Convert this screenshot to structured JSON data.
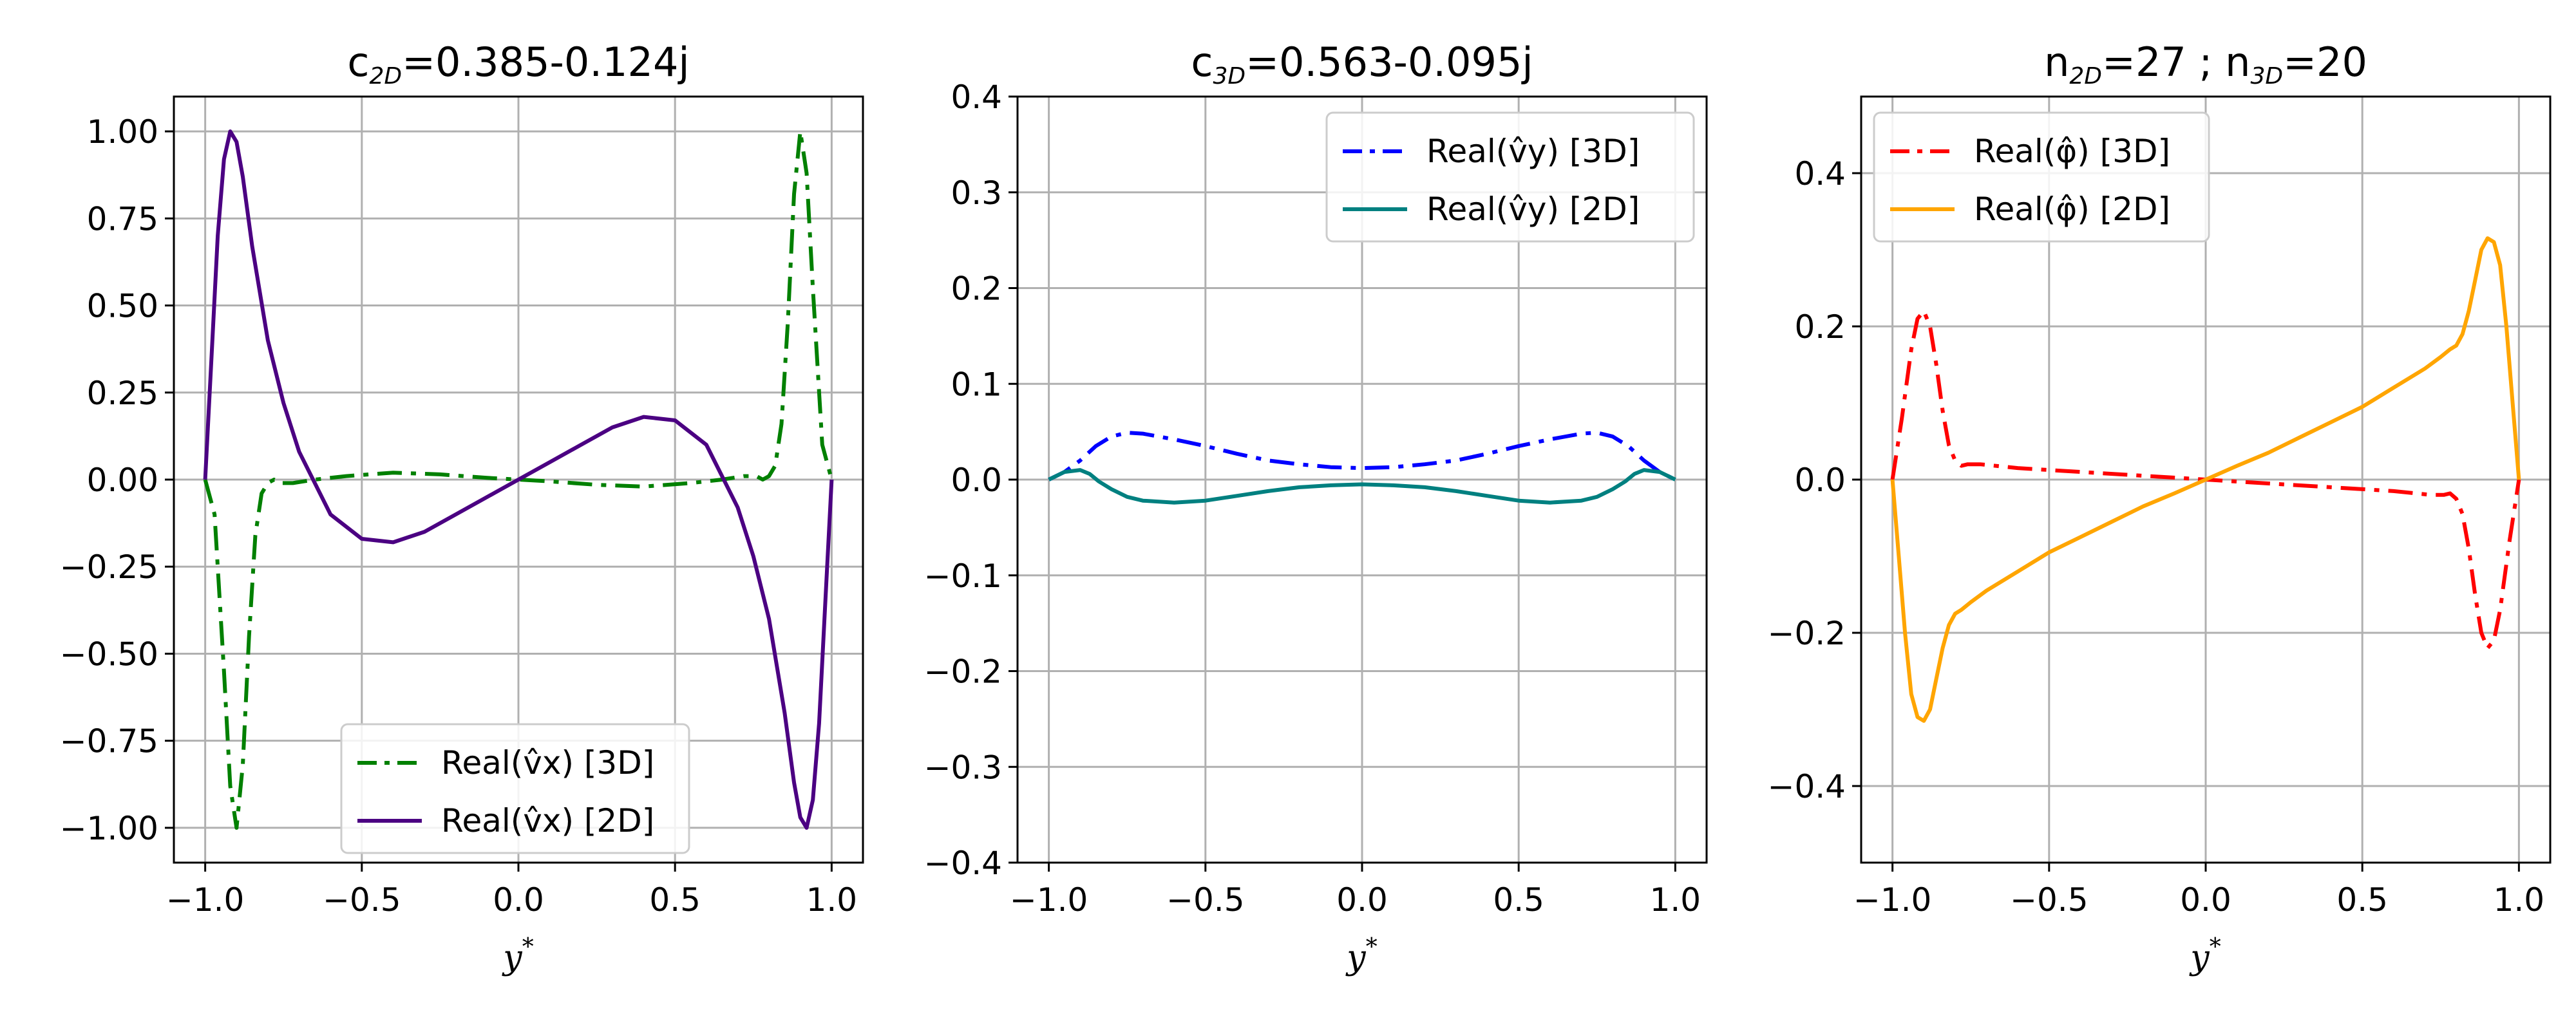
{
  "chart_data": [
    {
      "type": "line",
      "title": "c2D=0.385-0.124j",
      "title_parts": [
        "c",
        "2D",
        "=0.385-0.124j"
      ],
      "xlabel": "y*",
      "ylabel": "",
      "xlim": [
        -1.1,
        1.1
      ],
      "ylim": [
        -1.1,
        1.1
      ],
      "xticks": [
        -1.0,
        -0.5,
        0.0,
        0.5,
        1.0
      ],
      "xtick_labels": [
        "−1.0",
        "−0.5",
        "0.0",
        "0.5",
        "1.0"
      ],
      "yticks": [
        1.0,
        0.75,
        0.5,
        0.25,
        0.0,
        -0.25,
        -0.5,
        -0.75,
        -1.0
      ],
      "ytick_labels": [
        "1.00",
        "0.75",
        "0.50",
        "0.25",
        "0.00",
        "−0.25",
        "−0.50",
        "−0.75",
        "−1.00"
      ],
      "grid": true,
      "legend_position": "lower-center",
      "series": [
        {
          "name": "Real(v̂x) [3D]",
          "color": "#008000",
          "dash": "dashdot",
          "x": [
            -1.0,
            -0.97,
            -0.94,
            -0.92,
            -0.9,
            -0.88,
            -0.86,
            -0.84,
            -0.82,
            -0.8,
            -0.78,
            -0.76,
            -0.72,
            -0.65,
            -0.55,
            -0.4,
            -0.25,
            -0.1,
            0.0,
            0.1,
            0.25,
            0.4,
            0.55,
            0.65,
            0.72,
            0.76,
            0.78,
            0.8,
            0.82,
            0.84,
            0.86,
            0.88,
            0.9,
            0.92,
            0.94,
            0.97,
            1.0
          ],
          "y": [
            0.0,
            -0.1,
            -0.55,
            -0.88,
            -1.0,
            -0.82,
            -0.45,
            -0.16,
            -0.04,
            -0.01,
            0.0,
            -0.01,
            -0.01,
            0.0,
            0.01,
            0.02,
            0.015,
            0.005,
            0.0,
            -0.005,
            -0.015,
            -0.02,
            -0.01,
            0.0,
            0.01,
            0.01,
            0.0,
            0.01,
            0.04,
            0.16,
            0.45,
            0.82,
            1.0,
            0.88,
            0.55,
            0.1,
            0.0
          ]
        },
        {
          "name": "Real(v̂x) [2D]",
          "color": "#4b0082",
          "dash": "solid",
          "x": [
            -1.0,
            -0.98,
            -0.96,
            -0.94,
            -0.92,
            -0.9,
            -0.88,
            -0.85,
            -0.8,
            -0.75,
            -0.7,
            -0.6,
            -0.5,
            -0.4,
            -0.3,
            -0.2,
            -0.1,
            0.0,
            0.1,
            0.2,
            0.3,
            0.4,
            0.5,
            0.6,
            0.7,
            0.75,
            0.8,
            0.85,
            0.88,
            0.9,
            0.92,
            0.94,
            0.96,
            0.98,
            1.0
          ],
          "y": [
            0.0,
            0.35,
            0.7,
            0.92,
            1.0,
            0.97,
            0.87,
            0.67,
            0.4,
            0.22,
            0.08,
            -0.1,
            -0.17,
            -0.18,
            -0.15,
            -0.1,
            -0.05,
            0.0,
            0.05,
            0.1,
            0.15,
            0.18,
            0.17,
            0.1,
            -0.08,
            -0.22,
            -0.4,
            -0.67,
            -0.87,
            -0.97,
            -1.0,
            -0.92,
            -0.7,
            -0.35,
            0.0
          ]
        }
      ]
    },
    {
      "type": "line",
      "title": "c3D=0.563-0.095j",
      "title_parts": [
        "c",
        "3D",
        "=0.563-0.095j"
      ],
      "xlabel": "y*",
      "ylabel": "",
      "xlim": [
        -1.1,
        1.1
      ],
      "ylim": [
        -0.4,
        0.4
      ],
      "xticks": [
        -1.0,
        -0.5,
        0.0,
        0.5,
        1.0
      ],
      "xtick_labels": [
        "−1.0",
        "−0.5",
        "0.0",
        "0.5",
        "1.0"
      ],
      "yticks": [
        0.4,
        0.3,
        0.2,
        0.1,
        0.0,
        -0.1,
        -0.2,
        -0.3,
        -0.4
      ],
      "ytick_labels": [
        "0.4",
        "0.3",
        "0.2",
        "0.1",
        "0.0",
        "−0.1",
        "−0.2",
        "−0.3",
        "−0.4"
      ],
      "grid": true,
      "legend_position": "upper-right",
      "series": [
        {
          "name": "Real(v̂y) [3D]",
          "color": "#0000ff",
          "dash": "dashdot",
          "x": [
            -1.0,
            -0.95,
            -0.9,
            -0.85,
            -0.8,
            -0.75,
            -0.7,
            -0.6,
            -0.5,
            -0.4,
            -0.3,
            -0.2,
            -0.1,
            0.0,
            0.1,
            0.2,
            0.3,
            0.4,
            0.5,
            0.6,
            0.7,
            0.75,
            0.8,
            0.85,
            0.9,
            0.95,
            1.0
          ],
          "y": [
            0.0,
            0.008,
            0.02,
            0.035,
            0.045,
            0.049,
            0.048,
            0.042,
            0.035,
            0.027,
            0.02,
            0.016,
            0.013,
            0.012,
            0.013,
            0.016,
            0.02,
            0.027,
            0.035,
            0.042,
            0.048,
            0.049,
            0.045,
            0.035,
            0.02,
            0.008,
            0.0
          ]
        },
        {
          "name": "Real(v̂y) [2D]",
          "color": "#008080",
          "dash": "solid",
          "x": [
            -1.0,
            -0.95,
            -0.9,
            -0.87,
            -0.84,
            -0.8,
            -0.75,
            -0.7,
            -0.6,
            -0.5,
            -0.4,
            -0.3,
            -0.2,
            -0.1,
            0.0,
            0.1,
            0.2,
            0.3,
            0.4,
            0.5,
            0.6,
            0.7,
            0.75,
            0.8,
            0.84,
            0.87,
            0.9,
            0.95,
            1.0
          ],
          "y": [
            0.0,
            0.008,
            0.01,
            0.006,
            -0.002,
            -0.01,
            -0.018,
            -0.022,
            -0.024,
            -0.022,
            -0.017,
            -0.012,
            -0.008,
            -0.006,
            -0.005,
            -0.006,
            -0.008,
            -0.012,
            -0.017,
            -0.022,
            -0.024,
            -0.022,
            -0.018,
            -0.01,
            -0.002,
            0.006,
            0.01,
            0.008,
            0.0
          ]
        }
      ]
    },
    {
      "type": "line",
      "title": "n2D=27 ; n3D=20",
      "title_parts": [
        "n",
        "2D",
        "=27 ; n",
        "3D",
        "=20"
      ],
      "xlabel": "y*",
      "ylabel": "",
      "xlim": [
        -1.1,
        1.1
      ],
      "ylim": [
        -0.5,
        0.5
      ],
      "xticks": [
        -1.0,
        -0.5,
        0.0,
        0.5,
        1.0
      ],
      "xtick_labels": [
        "−1.0",
        "−0.5",
        "0.0",
        "0.5",
        "1.0"
      ],
      "yticks": [
        0.4,
        0.2,
        0.0,
        -0.2,
        -0.4
      ],
      "ytick_labels": [
        "0.4",
        "0.2",
        "0.0",
        "−0.2",
        "−0.4"
      ],
      "grid": true,
      "legend_position": "upper-left",
      "series": [
        {
          "name": "Real(φ̂) [3D]",
          "color": "#ff0000",
          "dash": "dashdot",
          "x": [
            -1.0,
            -0.97,
            -0.94,
            -0.92,
            -0.9,
            -0.88,
            -0.86,
            -0.84,
            -0.82,
            -0.8,
            -0.78,
            -0.76,
            -0.72,
            -0.6,
            -0.4,
            -0.2,
            0.0,
            0.2,
            0.4,
            0.6,
            0.72,
            0.76,
            0.78,
            0.8,
            0.82,
            0.84,
            0.86,
            0.88,
            0.9,
            0.92,
            0.94,
            0.97,
            1.0
          ],
          "y": [
            0.0,
            0.08,
            0.17,
            0.21,
            0.22,
            0.2,
            0.15,
            0.09,
            0.045,
            0.025,
            0.018,
            0.02,
            0.02,
            0.015,
            0.01,
            0.005,
            0.0,
            -0.005,
            -0.01,
            -0.015,
            -0.02,
            -0.02,
            -0.018,
            -0.025,
            -0.045,
            -0.09,
            -0.15,
            -0.2,
            -0.22,
            -0.21,
            -0.17,
            -0.08,
            0.0
          ]
        },
        {
          "name": "Real(φ̂) [2D]",
          "color": "#ffa500",
          "dash": "solid",
          "x": [
            -1.0,
            -0.98,
            -0.96,
            -0.94,
            -0.92,
            -0.9,
            -0.88,
            -0.86,
            -0.84,
            -0.82,
            -0.8,
            -0.78,
            -0.75,
            -0.7,
            -0.6,
            -0.5,
            -0.4,
            -0.3,
            -0.2,
            -0.1,
            0.0,
            0.1,
            0.2,
            0.3,
            0.4,
            0.5,
            0.6,
            0.7,
            0.75,
            0.78,
            0.8,
            0.82,
            0.84,
            0.86,
            0.88,
            0.9,
            0.92,
            0.94,
            0.96,
            0.98,
            1.0
          ],
          "y": [
            0.0,
            -0.1,
            -0.2,
            -0.28,
            -0.31,
            -0.315,
            -0.3,
            -0.26,
            -0.22,
            -0.19,
            -0.175,
            -0.17,
            -0.16,
            -0.145,
            -0.12,
            -0.095,
            -0.075,
            -0.055,
            -0.035,
            -0.018,
            0.0,
            0.018,
            0.035,
            0.055,
            0.075,
            0.095,
            0.12,
            0.145,
            0.16,
            0.17,
            0.175,
            0.19,
            0.22,
            0.26,
            0.3,
            0.315,
            0.31,
            0.28,
            0.2,
            0.1,
            0.0
          ]
        }
      ]
    }
  ]
}
